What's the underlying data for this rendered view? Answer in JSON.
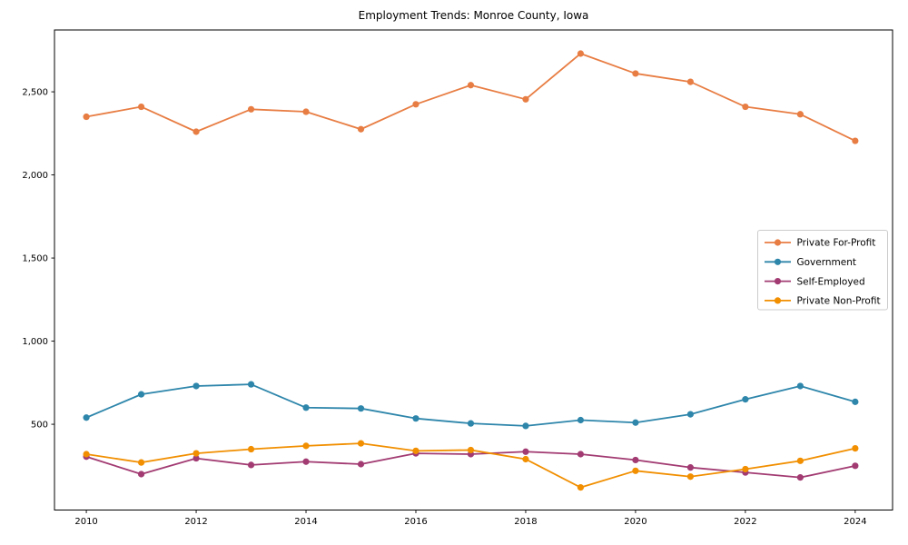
{
  "window": {
    "background_color": "#ffffff"
  },
  "chart_data": {
    "type": "line",
    "title": "Employment Trends: Monroe County, Iowa",
    "xlabel": "",
    "ylabel": "",
    "x": [
      2010,
      2011,
      2012,
      2013,
      2014,
      2015,
      2016,
      2017,
      2018,
      2019,
      2020,
      2021,
      2022,
      2023,
      2024
    ],
    "series": [
      {
        "name": "Private For-Profit",
        "color": "#E87D43",
        "marker": "circle",
        "values": [
          2350,
          2410,
          2260,
          2395,
          2380,
          2275,
          2425,
          2540,
          2455,
          2730,
          2610,
          2560,
          2410,
          2365,
          2205
        ]
      },
      {
        "name": "Government",
        "color": "#2E86AB",
        "marker": "circle",
        "values": [
          540,
          680,
          730,
          740,
          600,
          595,
          535,
          505,
          490,
          525,
          510,
          560,
          650,
          730,
          635
        ]
      },
      {
        "name": "Self-Employed",
        "color": "#A23B72",
        "marker": "circle",
        "values": [
          305,
          200,
          295,
          255,
          275,
          260,
          325,
          320,
          335,
          320,
          285,
          240,
          210,
          180,
          250
        ]
      },
      {
        "name": "Private Non-Profit",
        "color": "#F18F01",
        "marker": "circle",
        "values": [
          320,
          270,
          325,
          350,
          370,
          385,
          340,
          345,
          290,
          120,
          220,
          185,
          230,
          280,
          355
        ]
      }
    ],
    "xlim": [
      2009.42,
      2024.68
    ],
    "ylim": [
      -16,
      2872
    ],
    "xticks": [
      2010,
      2012,
      2014,
      2016,
      2018,
      2020,
      2022,
      2024
    ],
    "xtick_labels": [
      "2010",
      "2012",
      "2014",
      "2016",
      "2018",
      "2020",
      "2022",
      "2024"
    ],
    "yticks": [
      500,
      1000,
      1500,
      2000,
      2500
    ],
    "ytick_labels": [
      "500",
      "1,000",
      "1,500",
      "2,000",
      "2,500"
    ],
    "grid": false,
    "legend": {
      "position": "center-right",
      "items": [
        "Private For-Profit",
        "Government",
        "Self-Employed",
        "Private Non-Profit"
      ]
    },
    "axis_color": "#000000",
    "text_color": "#000000",
    "legend_border_color": "#cccccc",
    "legend_background": "#ffffff"
  }
}
